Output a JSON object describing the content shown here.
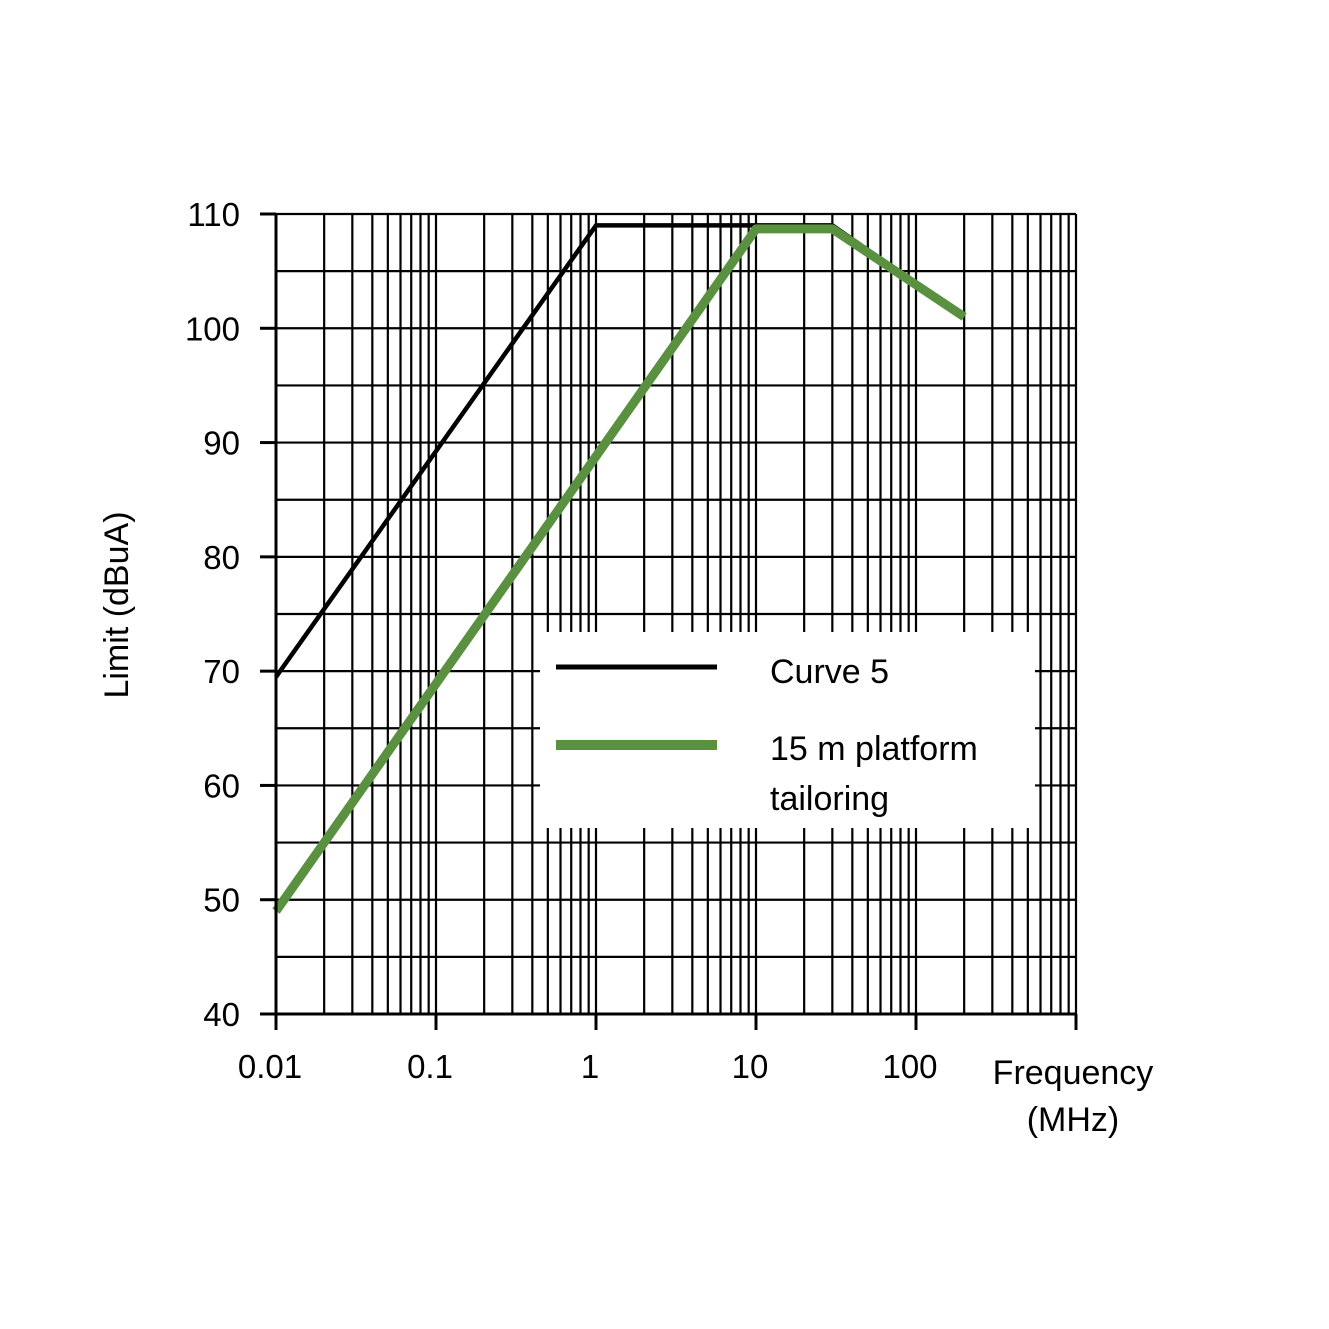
{
  "chart_data": {
    "type": "line",
    "title": "",
    "xlabel": [
      "Frequency",
      "(MHz)"
    ],
    "ylabel": "Limit (dBuA)",
    "xscale": "log",
    "xlim": [
      0.01,
      1000
    ],
    "ylim": [
      40,
      110
    ],
    "xticks": [
      {
        "value": 0.01,
        "label": "0.01"
      },
      {
        "value": 0.1,
        "label": "0.1"
      },
      {
        "value": 1,
        "label": "1"
      },
      {
        "value": 10,
        "label": "10"
      },
      {
        "value": 100,
        "label": "100"
      }
    ],
    "yticks": [
      {
        "value": 40,
        "label": "40"
      },
      {
        "value": 50,
        "label": "50"
      },
      {
        "value": 60,
        "label": "60"
      },
      {
        "value": 70,
        "label": "70"
      },
      {
        "value": 80,
        "label": "80"
      },
      {
        "value": 90,
        "label": "90"
      },
      {
        "value": 100,
        "label": "100"
      },
      {
        "value": 110,
        "label": "110"
      }
    ],
    "grid": true,
    "legend": "inside lower-right",
    "series": [
      {
        "name": "Curve 5",
        "color": "#000000",
        "x": [
          0.01,
          1,
          30,
          200
        ],
        "y": [
          69.5,
          109,
          109,
          101
        ]
      },
      {
        "name_lines": [
          "15 m platform",
          "tailoring"
        ],
        "color": "#5a9140",
        "x": [
          0.01,
          10,
          30,
          200
        ],
        "y": [
          49,
          108.7,
          108.7,
          101
        ]
      }
    ]
  }
}
